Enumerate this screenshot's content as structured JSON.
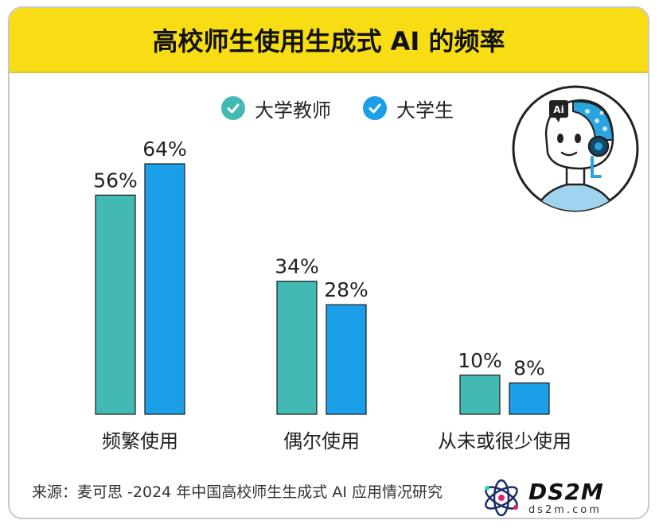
{
  "title": "高校师生使用生成式 AI 的频率",
  "legend": [
    {
      "name": "大学教师",
      "color": "#43b9b3"
    },
    {
      "name": "大学生",
      "color": "#1a9fe8"
    }
  ],
  "chart_data": {
    "type": "bar",
    "title": "高校师生使用生成式 AI 的频率",
    "categories": [
      "频繁使用",
      "偶尔使用",
      "从未或很少使用"
    ],
    "series": [
      {
        "name": "大学教师",
        "values": [
          56,
          34,
          10
        ],
        "color": "#43b9b3"
      },
      {
        "name": "大学生",
        "values": [
          64,
          28,
          8
        ],
        "color": "#1a9fe8"
      }
    ],
    "unit": "%",
    "ylim": [
      0,
      64
    ],
    "grid": false,
    "legend_position": "top-center"
  },
  "robot_badge": "Ai",
  "source": "来源：麦可思 -2024 年中国高校师生生成式 AI 应用情况研究",
  "watermark": {
    "brand": "DS2M",
    "site": "ds2m.com"
  }
}
